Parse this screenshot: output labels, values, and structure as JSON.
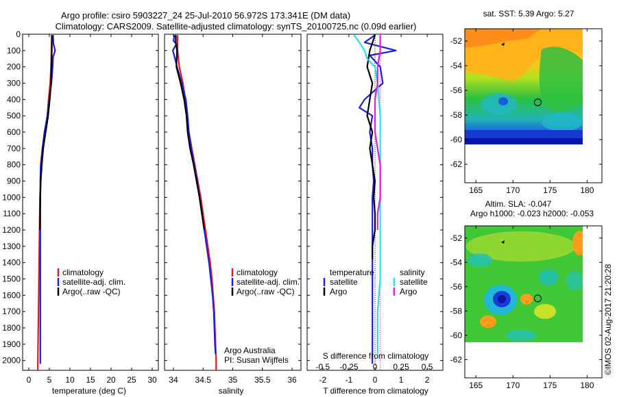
{
  "header": {
    "line1": "Argo profile: csiro 5903227_24 25-Jul-2010 56.972S 173.341E (DM data)",
    "line2": "Climatology: CARS2009. Satellite-adjusted climatology: synTS_20100725.nc (0.09d earlier)"
  },
  "credit": "©IMOS 02-Aug-2017 21:20:28",
  "colors": {
    "climatology": "#e8141c",
    "satellite": "#1c1ce0",
    "argo": "#000000",
    "sat_salinity": "#22e0e8",
    "argo_salinity": "#e01ce0"
  },
  "chart_data": [
    {
      "type": "line",
      "id": "temperature",
      "xlabel": "temperature (deg C)",
      "ylabel": "",
      "xlim": [
        -1.5,
        31.5
      ],
      "ylim": [
        2060,
        0
      ],
      "xticks": [
        0,
        5,
        10,
        15,
        20,
        25,
        30
      ],
      "yticks": [
        0,
        100,
        200,
        300,
        400,
        500,
        600,
        700,
        800,
        900,
        1000,
        1100,
        1200,
        1300,
        1400,
        1500,
        1600,
        1700,
        1800,
        1900,
        2000
      ],
      "legend": [
        "climatology",
        "satellite-adj. clim.",
        "Argo(..raw -QC)"
      ],
      "legend_position": "lower-middle",
      "series": [
        {
          "name": "climatology",
          "points": [
            [
              5.6,
              5
            ],
            [
              5.5,
              100
            ],
            [
              5.4,
              200
            ],
            [
              5.2,
              300
            ],
            [
              4.8,
              400
            ],
            [
              4.5,
              500
            ],
            [
              4.0,
              600
            ],
            [
              3.5,
              700
            ],
            [
              3.2,
              800
            ],
            [
              2.9,
              900
            ],
            [
              2.7,
              1000
            ],
            [
              2.6,
              1200
            ],
            [
              2.5,
              1400
            ],
            [
              2.4,
              1600
            ],
            [
              2.3,
              1800
            ],
            [
              2.2,
              2000
            ],
            [
              2.2,
              2060
            ]
          ]
        },
        {
          "name": "satellite-adj. clim.",
          "points": [
            [
              5.9,
              5
            ],
            [
              6.0,
              60
            ],
            [
              6.4,
              100
            ],
            [
              5.9,
              140
            ],
            [
              5.8,
              200
            ],
            [
              5.5,
              300
            ],
            [
              5.0,
              400
            ],
            [
              4.5,
              500
            ],
            [
              3.8,
              600
            ],
            [
              3.3,
              700
            ],
            [
              2.9,
              800
            ],
            [
              2.8,
              900
            ],
            [
              2.8,
              1000
            ],
            [
              2.8,
              1200
            ],
            [
              2.8,
              1400
            ],
            [
              2.8,
              1600
            ],
            [
              2.8,
              1800
            ],
            [
              2.8,
              2000
            ],
            [
              2.8,
              2020
            ]
          ]
        },
        {
          "name": "Argo(..raw -QC)",
          "points": [
            [
              5.6,
              5
            ],
            [
              5.6,
              100
            ],
            [
              5.5,
              200
            ],
            [
              5.4,
              300
            ],
            [
              5.1,
              400
            ],
            [
              4.7,
              500
            ],
            [
              4.1,
              600
            ],
            [
              3.5,
              700
            ],
            [
              3.1,
              800
            ],
            [
              2.9,
              900
            ],
            [
              2.8,
              1000
            ],
            [
              2.7,
              1200
            ]
          ]
        }
      ]
    },
    {
      "type": "line",
      "id": "salinity",
      "xlabel": "salinity",
      "ylabel": "",
      "xlim": [
        33.85,
        36.15
      ],
      "ylim": [
        2060,
        0
      ],
      "xticks": [
        34,
        34.5,
        35,
        35.5,
        36
      ],
      "legend": [
        "climatology",
        "satellite-adj. clim.",
        "Argo(..raw -QC)"
      ],
      "legend_position": "lower-middle",
      "annotation": [
        "Argo Australia",
        "PI: Susan Wijffels"
      ],
      "series": [
        {
          "name": "climatology",
          "points": [
            [
              34.07,
              5
            ],
            [
              34.07,
              100
            ],
            [
              34.1,
              200
            ],
            [
              34.16,
              300
            ],
            [
              34.2,
              400
            ],
            [
              34.23,
              500
            ],
            [
              34.26,
              600
            ],
            [
              34.31,
              700
            ],
            [
              34.36,
              800
            ],
            [
              34.41,
              900
            ],
            [
              34.46,
              1000
            ],
            [
              34.5,
              1100
            ],
            [
              34.54,
              1200
            ],
            [
              34.58,
              1300
            ],
            [
              34.62,
              1400
            ],
            [
              34.65,
              1500
            ],
            [
              34.67,
              1600
            ],
            [
              34.69,
              1700
            ],
            [
              34.7,
              1800
            ],
            [
              34.71,
              1900
            ],
            [
              34.72,
              2000
            ],
            [
              34.72,
              2060
            ]
          ]
        },
        {
          "name": "satellite-adj. clim.",
          "points": [
            [
              34.02,
              5
            ],
            [
              34.0,
              40
            ],
            [
              34.05,
              60
            ],
            [
              33.99,
              100
            ],
            [
              34.02,
              140
            ],
            [
              34.06,
              200
            ],
            [
              34.14,
              300
            ],
            [
              34.21,
              400
            ],
            [
              34.24,
              500
            ],
            [
              34.26,
              600
            ],
            [
              34.3,
              700
            ],
            [
              34.35,
              800
            ],
            [
              34.4,
              900
            ],
            [
              34.44,
              1000
            ],
            [
              34.48,
              1100
            ],
            [
              34.52,
              1200
            ],
            [
              34.56,
              1300
            ],
            [
              34.6,
              1400
            ],
            [
              34.63,
              1500
            ],
            [
              34.66,
              1600
            ],
            [
              34.68,
              1700
            ],
            [
              34.69,
              1800
            ],
            [
              34.7,
              1900
            ],
            [
              34.71,
              1960
            ]
          ]
        },
        {
          "name": "Argo(..raw -QC)",
          "points": [
            [
              34.04,
              5
            ],
            [
              34.04,
              50
            ],
            [
              34.06,
              100
            ],
            [
              34.05,
              200
            ],
            [
              34.12,
              300
            ],
            [
              34.18,
              400
            ],
            [
              34.22,
              500
            ],
            [
              34.24,
              600
            ],
            [
              34.28,
              700
            ],
            [
              34.34,
              800
            ],
            [
              34.39,
              900
            ],
            [
              34.44,
              1000
            ],
            [
              34.48,
              1100
            ],
            [
              34.52,
              1200
            ]
          ]
        }
      ]
    },
    {
      "type": "line",
      "id": "difference",
      "xlabel": "T difference from climatology",
      "xlabel2": "S difference from climatology",
      "ylabel": "",
      "xlim": [
        -2.6,
        2.6
      ],
      "ylim": [
        2060,
        0
      ],
      "xticks": [
        -2,
        -1,
        0,
        1,
        2
      ],
      "xticks_s": [
        {
          "label": "-0.5",
          "t": -2
        },
        {
          "label": "-0.25",
          "t": -1
        },
        {
          "label": "0",
          "t": 0
        },
        {
          "label": "0.25",
          "t": 1
        },
        {
          "label": "0.5",
          "t": 2
        }
      ],
      "legend_temperature": {
        "title": "temperature",
        "items": [
          "satellite",
          "Argo"
        ]
      },
      "legend_salinity": {
        "title": "salinity",
        "items": [
          "satellite",
          "Argo"
        ]
      },
      "series": [
        {
          "name": "T satellite",
          "points": [
            [
              0.0,
              5
            ],
            [
              -0.4,
              50
            ],
            [
              0.8,
              100
            ],
            [
              -0.2,
              130
            ],
            [
              0.2,
              200
            ],
            [
              0.3,
              300
            ],
            [
              -0.4,
              400
            ],
            [
              -0.6,
              450
            ],
            [
              -0.1,
              500
            ],
            [
              -0.2,
              600
            ],
            [
              -0.1,
              700
            ],
            [
              -0.1,
              800
            ],
            [
              -0.05,
              900
            ],
            [
              -0.1,
              1000
            ],
            [
              -0.1,
              1200
            ],
            [
              -0.1,
              1400
            ],
            [
              -0.1,
              1600
            ],
            [
              -0.1,
              1800
            ],
            [
              -0.1,
              2000
            ],
            [
              -0.1,
              2020
            ]
          ]
        },
        {
          "name": "T Argo",
          "points": [
            [
              0.0,
              5
            ],
            [
              -0.2,
              100
            ],
            [
              -0.3,
              200
            ],
            [
              -0.1,
              300
            ],
            [
              -0.2,
              400
            ],
            [
              -0.3,
              500
            ],
            [
              -0.1,
              600
            ],
            [
              -0.2,
              700
            ],
            [
              -0.1,
              800
            ],
            [
              0.0,
              900
            ],
            [
              -0.05,
              1000
            ],
            [
              0.0,
              1100
            ],
            [
              0.0,
              1200
            ],
            [
              -0.1,
              1300
            ],
            [
              -0.1,
              1380
            ]
          ]
        },
        {
          "name": "S satellite",
          "points": [
            [
              -0.8,
              5
            ],
            [
              -0.6,
              50
            ],
            [
              -0.4,
              100
            ],
            [
              -0.3,
              150
            ],
            [
              0.0,
              200
            ],
            [
              0.1,
              300
            ],
            [
              0.2,
              500
            ],
            [
              0.2,
              700
            ],
            [
              0.2,
              900
            ],
            [
              0.2,
              1100
            ],
            [
              0.2,
              1300
            ],
            [
              0.2,
              1500
            ],
            [
              0.1,
              1700
            ],
            [
              0.1,
              1900
            ],
            [
              0.1,
              1960
            ]
          ]
        },
        {
          "name": "S Argo",
          "points": [
            [
              0.2,
              5
            ],
            [
              0.2,
              100
            ],
            [
              0.1,
              200
            ],
            [
              0.1,
              300
            ],
            [
              0.0,
              400
            ],
            [
              0.0,
              500
            ],
            [
              0.0,
              600
            ],
            [
              0.1,
              700
            ],
            [
              0.2,
              800
            ],
            [
              0.2,
              900
            ],
            [
              0.2,
              1000
            ],
            [
              0.1,
              1100
            ],
            [
              0.1,
              1200
            ]
          ]
        }
      ]
    },
    {
      "type": "heatmap",
      "id": "sst-map",
      "title": "sat. SST: 5.39  Argo: 5.27",
      "xlim": [
        163.5,
        182
      ],
      "ylim": [
        -63.5,
        -51
      ],
      "xticks": [
        165,
        170,
        175,
        180
      ],
      "yticks": [
        -52,
        -54,
        -56,
        -58,
        -60,
        -62
      ],
      "argo_position": [
        173.34,
        -56.97
      ]
    },
    {
      "type": "heatmap",
      "id": "sla-map",
      "title": "Altim. SLA: -0.047",
      "subtitle": "Argo h1000: -0.023 h2000: -0.053",
      "xlim": [
        163.5,
        182
      ],
      "ylim": [
        -63.5,
        -51
      ],
      "xticks": [
        165,
        170,
        175,
        180
      ],
      "yticks": [
        -52,
        -54,
        -56,
        -58,
        -60,
        -62
      ],
      "argo_position": [
        173.34,
        -56.97
      ]
    }
  ]
}
